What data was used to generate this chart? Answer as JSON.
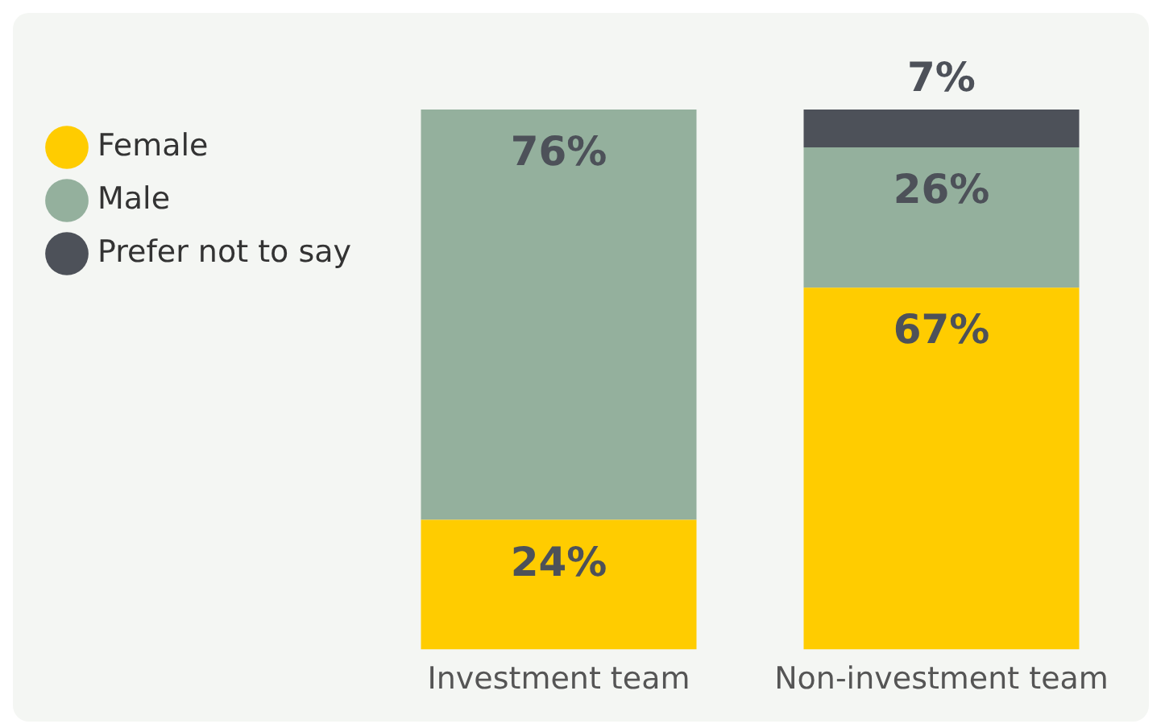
{
  "chart_data": {
    "type": "bar",
    "stacked": true,
    "categories": [
      "Investment team",
      "Non-investment team"
    ],
    "series": [
      {
        "name": "Female",
        "color": "#ffcc00",
        "values": [
          24,
          67
        ],
        "value_labels": [
          "24%",
          "67%"
        ]
      },
      {
        "name": "Male",
        "color": "#94b09d",
        "values": [
          76,
          26
        ],
        "value_labels": [
          "76%",
          "26%"
        ]
      },
      {
        "name": "Prefer not to say",
        "color": "#4d5159",
        "values": [
          null,
          7
        ],
        "value_labels": [
          null,
          "7%"
        ]
      }
    ],
    "legend": "top left",
    "grid": false
  }
}
